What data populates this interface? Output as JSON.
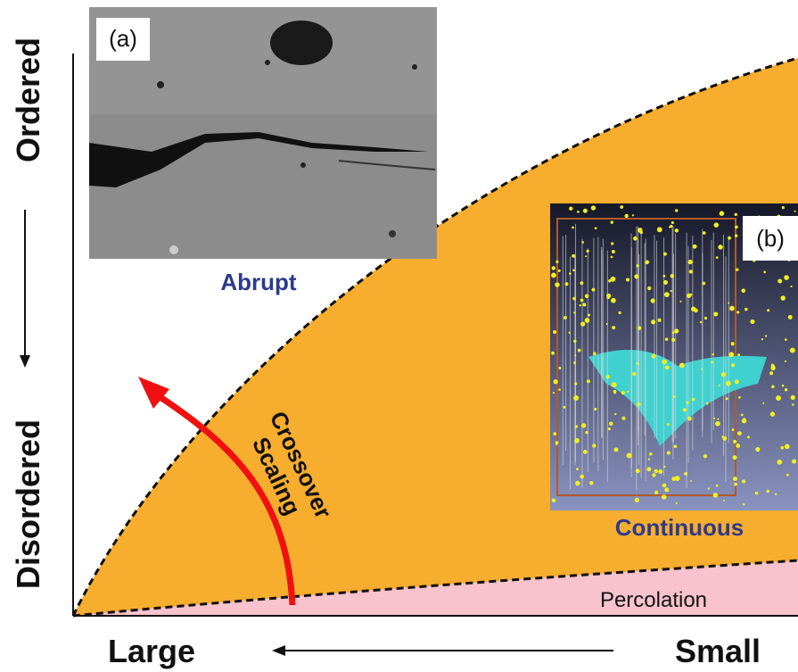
{
  "axes": {
    "y_top": "Ordered",
    "y_bottom": "Disordered",
    "x_left": "Large",
    "x_right": "Small"
  },
  "panels": [
    {
      "label": "(a)",
      "caption": "Abrupt"
    },
    {
      "label": "(b)",
      "caption": "Continuous"
    }
  ],
  "regions": {
    "crossover": [
      "Crossover",
      "Scaling"
    ],
    "percolation": "Percolation"
  }
}
